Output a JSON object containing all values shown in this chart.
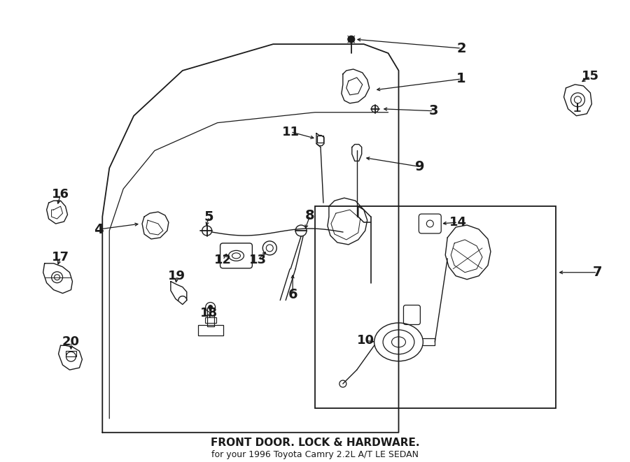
{
  "bg_color": "#ffffff",
  "line_color": "#1a1a1a",
  "figsize": [
    9.0,
    6.61
  ],
  "dpi": 100,
  "title": "FRONT DOOR. LOCK & HARDWARE.",
  "subtitle": "for your 1996 Toyota Camry 2.2L A/T LE SEDAN"
}
